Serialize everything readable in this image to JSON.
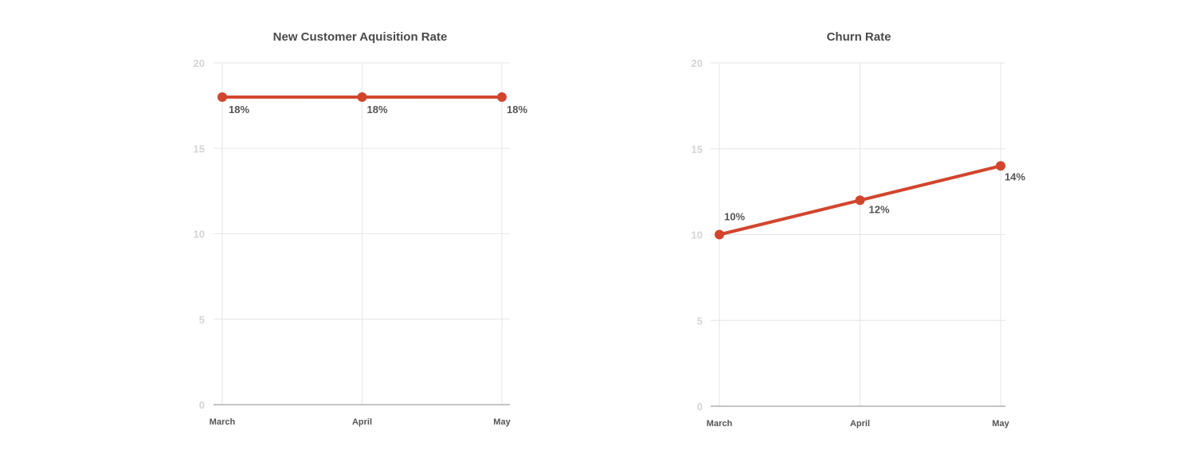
{
  "colors": {
    "line": "#d2452d",
    "grid": "#e6e6e6",
    "axis": "#8a8a8a",
    "text": "#555555",
    "tick": "#d4d4d4"
  },
  "chart_data": [
    {
      "type": "line",
      "title": "New Customer Aquisition Rate",
      "categories": [
        "March",
        "April",
        "May"
      ],
      "values": [
        18,
        18,
        18
      ],
      "data_labels": [
        "18%",
        "18%",
        "18%"
      ],
      "yticks": [
        "0",
        "5",
        "10",
        "15",
        "20"
      ],
      "ylim": [
        0,
        20
      ],
      "grid": true,
      "legend": "none"
    },
    {
      "type": "line",
      "title": "Churn Rate",
      "categories": [
        "March",
        "April",
        "May"
      ],
      "values": [
        10,
        12,
        14
      ],
      "data_labels": [
        "10%",
        "12%",
        "14%"
      ],
      "yticks": [
        "0",
        "5",
        "10",
        "15",
        "20"
      ],
      "ylim": [
        0,
        20
      ],
      "grid": true,
      "legend": "none"
    }
  ]
}
